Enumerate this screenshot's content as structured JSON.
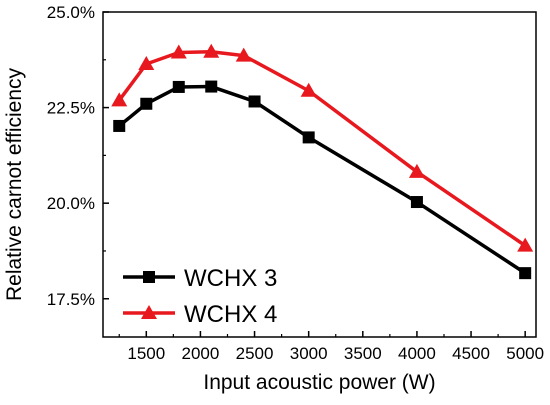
{
  "chart_data": {
    "type": "line",
    "title": "",
    "xlabel": "Input acoustic power (W)",
    "ylabel": "Relative carnot efficiency",
    "xlim": [
      1100,
      5100
    ],
    "ylim": [
      16.5,
      25.0
    ],
    "x_ticks": [
      1500,
      2000,
      2500,
      3000,
      3500,
      4000,
      4500,
      5000
    ],
    "x_tick_labels": [
      "1500",
      "2000",
      "2500",
      "3000",
      "3500",
      "4000",
      "4500",
      "5000"
    ],
    "y_ticks": [
      17.5,
      20.0,
      22.5,
      25.0
    ],
    "y_tick_labels": [
      "17.5%",
      "20.0%",
      "22.5%",
      "25.0%"
    ],
    "grid": false,
    "legend_position": "bottom-left",
    "series": [
      {
        "name": "WCHX 3",
        "color": "#000000",
        "marker": "square",
        "x": [
          1250,
          1500,
          1800,
          2100,
          2500,
          3000,
          4000,
          5000
        ],
        "y": [
          22.02,
          22.6,
          23.04,
          23.05,
          22.66,
          21.72,
          20.03,
          18.17
        ]
      },
      {
        "name": "WCHX 4",
        "color": "#e8191e",
        "marker": "triangle",
        "x": [
          1250,
          1500,
          1800,
          2100,
          2400,
          3000,
          4000,
          5000
        ],
        "y": [
          22.69,
          23.64,
          23.94,
          23.96,
          23.86,
          22.94,
          20.82,
          18.89
        ]
      }
    ]
  }
}
